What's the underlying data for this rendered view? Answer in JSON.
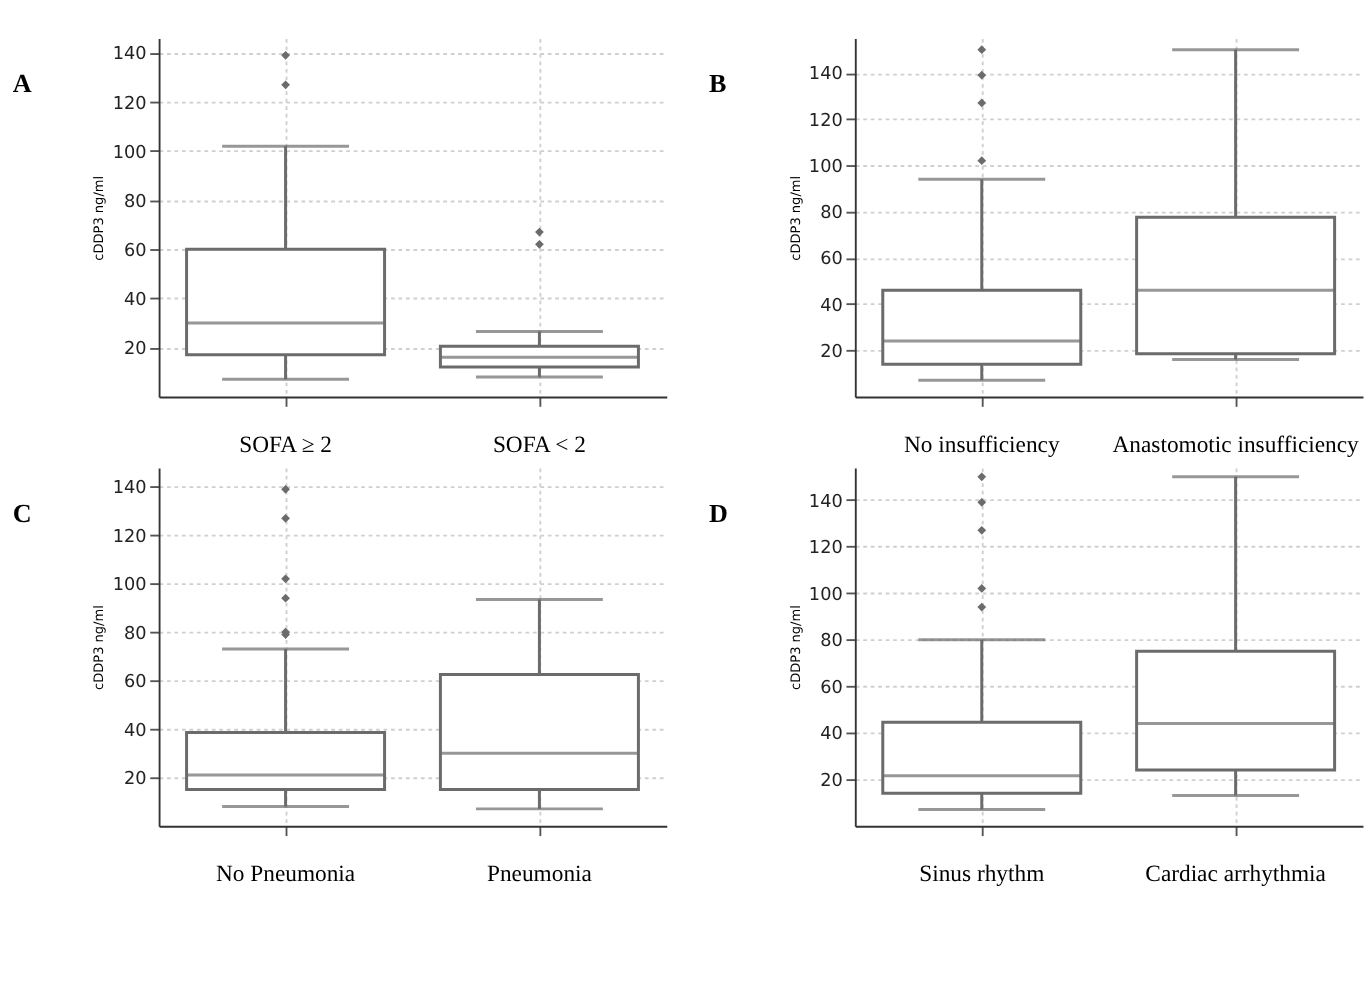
{
  "chart_data": [
    {
      "type": "box",
      "title": "A",
      "ylabel": "cDDP3 ng/ml",
      "categories": [
        "SOFA ≥ 2",
        "SOFA <  2"
      ],
      "ylim": [
        0,
        146
      ],
      "yticks": [
        20,
        40,
        60,
        80,
        100,
        120,
        140
      ],
      "grid": true,
      "series": [
        {
          "color": "#6b6b6b",
          "boxes": [
            {
              "low": 7,
              "q1": 17,
              "median": 30,
              "q3": 60,
              "high": 102,
              "outliers": [
                127,
                139
              ]
            },
            {
              "low": 8,
              "q1": 12,
              "median": 16,
              "q3": 20.5,
              "high": 26.5,
              "outliers": [
                62,
                67
              ]
            }
          ]
        }
      ]
    },
    {
      "type": "box",
      "title": "B",
      "ylabel": "cDDP3 ng/ml",
      "categories": [
        "No insufficiency",
        "Anastomotic insufficiency"
      ],
      "ylim": [
        0,
        155
      ],
      "yticks": [
        20,
        40,
        60,
        80,
        100,
        120,
        140
      ],
      "grid": true,
      "series": [
        {
          "color": "#6b6b6b",
          "boxes": [
            {
              "low": 7,
              "q1": 14,
              "median": 24,
              "q3": 46,
              "high": 94,
              "outliers": [
                102,
                127,
                139,
                150
              ]
            },
            {
              "low": 16,
              "q1": 18.5,
              "median": 46,
              "q3": 77.5,
              "high": 150
            }
          ]
        }
      ]
    },
    {
      "type": "box",
      "title": "C",
      "ylabel": "cDDP3 ng/ml",
      "categories": [
        "No Pneumonia",
        "Pneumonia"
      ],
      "ylim": [
        0,
        148
      ],
      "yticks": [
        20,
        40,
        60,
        80,
        100,
        120,
        140
      ],
      "grid": true,
      "series": [
        {
          "color": "#6b6b6b",
          "boxes": [
            {
              "low": 8,
              "q1": 15,
              "median": 21,
              "q3": 38.5,
              "high": 73,
              "outliers": [
                79,
                80,
                94,
                102,
                127,
                139
              ]
            },
            {
              "low": 7,
              "q1": 15,
              "median": 30,
              "q3": 62.5,
              "high": 93.5
            }
          ]
        }
      ]
    },
    {
      "type": "box",
      "title": "D",
      "ylabel": "cDDP3 ng/ml",
      "categories": [
        "Sinus rhythm",
        "Cardiac arrhythmia"
      ],
      "ylim": [
        0,
        154
      ],
      "yticks": [
        20,
        40,
        60,
        80,
        100,
        120,
        140
      ],
      "grid": true,
      "series": [
        {
          "color": "#6b6b6b",
          "boxes": [
            {
              "low": 7,
              "q1": 14,
              "median": 21.5,
              "q3": 44.5,
              "high": 80,
              "outliers": [
                94,
                102,
                127,
                139,
                150
              ]
            },
            {
              "low": 13,
              "q1": 24,
              "median": 44,
              "q3": 75,
              "high": 150
            }
          ]
        }
      ]
    }
  ]
}
